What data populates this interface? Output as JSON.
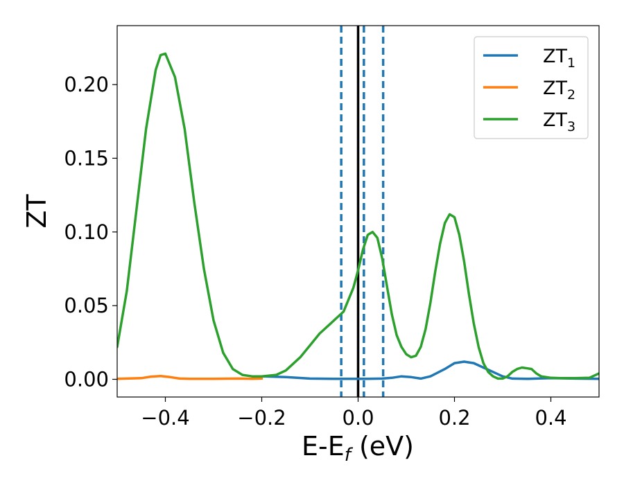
{
  "chart_data": {
    "type": "line",
    "xlabel": {
      "main": "E-E",
      "sub": "f",
      "unit": " (eV)"
    },
    "ylabel": "ZT",
    "xlim": [
      -0.5,
      0.5
    ],
    "ylim": [
      -0.012,
      0.24
    ],
    "x_ticks": [
      {
        "v": -0.4,
        "label": "−0.4"
      },
      {
        "v": -0.2,
        "label": "−0.2"
      },
      {
        "v": 0.0,
        "label": "0.0"
      },
      {
        "v": 0.2,
        "label": "0.2"
      },
      {
        "v": 0.4,
        "label": "0.4"
      }
    ],
    "y_ticks": [
      {
        "v": 0.0,
        "label": "0.00"
      },
      {
        "v": 0.05,
        "label": "0.05"
      },
      {
        "v": 0.1,
        "label": "0.10"
      },
      {
        "v": 0.15,
        "label": "0.15"
      },
      {
        "v": 0.2,
        "label": "0.20"
      }
    ],
    "legend_position": "top-right",
    "series": [
      {
        "name": {
          "main": "ZT",
          "sub": "1"
        },
        "color": "#1f77b4",
        "x": [
          -0.2,
          -0.15,
          -0.1,
          -0.05,
          0.0,
          0.02,
          0.05,
          0.07,
          0.09,
          0.11,
          0.13,
          0.15,
          0.18,
          0.2,
          0.22,
          0.24,
          0.26,
          0.28,
          0.3,
          0.32,
          0.35,
          0.4,
          0.45,
          0.5
        ],
        "values": [
          0.002,
          0.0015,
          0.0005,
          0.0003,
          0.0003,
          0.0003,
          0.0005,
          0.001,
          0.002,
          0.0015,
          0.0005,
          0.002,
          0.007,
          0.011,
          0.012,
          0.011,
          0.008,
          0.005,
          0.002,
          0.0005,
          0.0003,
          0.0008,
          0.0005,
          0.0003
        ]
      },
      {
        "name": {
          "main": "ZT",
          "sub": "2"
        },
        "color": "#ff7f0e",
        "x": [
          -0.5,
          -0.45,
          -0.43,
          -0.41,
          -0.39,
          -0.37,
          -0.35,
          -0.3,
          -0.25,
          -0.22,
          -0.2
        ],
        "values": [
          0.0003,
          0.0008,
          0.0018,
          0.0022,
          0.0015,
          0.0005,
          0.0003,
          0.0003,
          0.0005,
          0.0003,
          0.0005
        ]
      },
      {
        "name": {
          "main": "ZT",
          "sub": "3"
        },
        "color": "#2ca02c",
        "x": [
          -0.5,
          -0.48,
          -0.46,
          -0.44,
          -0.42,
          -0.41,
          -0.4,
          -0.38,
          -0.36,
          -0.34,
          -0.32,
          -0.3,
          -0.28,
          -0.26,
          -0.24,
          -0.22,
          -0.2,
          -0.17,
          -0.15,
          -0.12,
          -0.1,
          -0.08,
          -0.06,
          -0.04,
          -0.03,
          -0.02,
          -0.01,
          0.0,
          0.01,
          0.02,
          0.03,
          0.04,
          0.05,
          0.06,
          0.07,
          0.08,
          0.09,
          0.1,
          0.11,
          0.12,
          0.13,
          0.14,
          0.15,
          0.16,
          0.17,
          0.18,
          0.19,
          0.2,
          0.21,
          0.22,
          0.23,
          0.24,
          0.25,
          0.26,
          0.27,
          0.28,
          0.29,
          0.3,
          0.31,
          0.32,
          0.33,
          0.34,
          0.36,
          0.37,
          0.38,
          0.4,
          0.42,
          0.45,
          0.48,
          0.5
        ],
        "values": [
          0.022,
          0.06,
          0.115,
          0.17,
          0.21,
          0.22,
          0.221,
          0.205,
          0.17,
          0.12,
          0.075,
          0.04,
          0.018,
          0.007,
          0.003,
          0.002,
          0.002,
          0.003,
          0.006,
          0.015,
          0.023,
          0.031,
          0.037,
          0.043,
          0.046,
          0.054,
          0.062,
          0.074,
          0.088,
          0.098,
          0.1,
          0.096,
          0.082,
          0.063,
          0.044,
          0.03,
          0.022,
          0.017,
          0.015,
          0.016,
          0.022,
          0.034,
          0.052,
          0.073,
          0.092,
          0.106,
          0.112,
          0.11,
          0.098,
          0.08,
          0.058,
          0.038,
          0.022,
          0.011,
          0.005,
          0.002,
          0.0005,
          0.0005,
          0.002,
          0.005,
          0.007,
          0.008,
          0.007,
          0.004,
          0.002,
          0.001,
          0.0008,
          0.0008,
          0.001,
          0.004
        ]
      }
    ],
    "vlines": [
      {
        "x": 0.0,
        "style": "solid",
        "color": "#000000"
      },
      {
        "x": -0.035,
        "style": "dashed",
        "color": "#1f77b4"
      },
      {
        "x": 0.012,
        "style": "dashed",
        "color": "#1f77b4"
      },
      {
        "x": 0.052,
        "style": "dashed",
        "color": "#1f77b4"
      }
    ]
  }
}
